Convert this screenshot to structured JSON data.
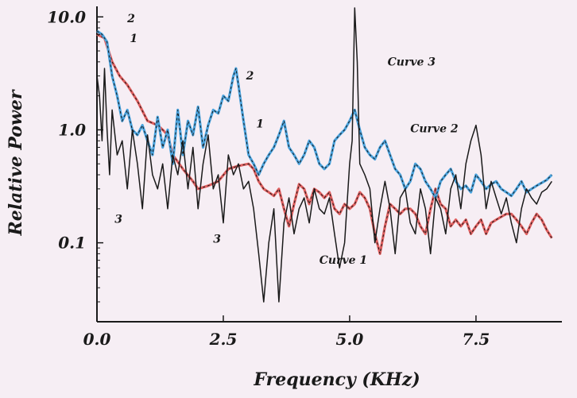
{
  "chart_data": {
    "type": "line",
    "title": "",
    "xlabel": "Frequency (KHz)",
    "ylabel": "Relative Power",
    "xlim": [
      0,
      9.2
    ],
    "ylim": [
      0.02,
      12
    ],
    "yscale": "log",
    "x_ticks": [
      {
        "value": 0.0,
        "label": "0.0"
      },
      {
        "value": 2.5,
        "label": "2.5"
      },
      {
        "value": 5.0,
        "label": "5.0"
      },
      {
        "value": 7.5,
        "label": "7.5"
      }
    ],
    "y_ticks": [
      {
        "value": 10,
        "label": "10.0"
      },
      {
        "value": 1,
        "label": "1.0"
      },
      {
        "value": 0.1,
        "label": "0.1"
      }
    ],
    "grid": false,
    "series": [
      {
        "name": "Curve 1",
        "color": "#e06060",
        "x": [
          0.0,
          0.15,
          0.2,
          0.3,
          0.45,
          0.6,
          0.8,
          1.0,
          1.2,
          1.3,
          1.4,
          1.5,
          1.7,
          1.9,
          2.0,
          2.2,
          2.4,
          2.6,
          2.8,
          3.0,
          3.1,
          3.2,
          3.3,
          3.4,
          3.5,
          3.6,
          3.7,
          3.8,
          3.9,
          4.0,
          4.1,
          4.2,
          4.3,
          4.4,
          4.5,
          4.6,
          4.7,
          4.8,
          4.9,
          5.0,
          5.1,
          5.2,
          5.3,
          5.4,
          5.5,
          5.6,
          5.7,
          5.8,
          5.9,
          6.0,
          6.1,
          6.2,
          6.3,
          6.4,
          6.5,
          6.6,
          6.7,
          6.8,
          6.9,
          7.0,
          7.1,
          7.2,
          7.3,
          7.4,
          7.5,
          7.6,
          7.7,
          7.8,
          7.9,
          8.0,
          8.1,
          8.2,
          8.3,
          8.4,
          8.5,
          8.6,
          8.7,
          8.8,
          8.9,
          9.0
        ],
        "values": [
          7.0,
          6.5,
          5.5,
          4.0,
          3.0,
          2.5,
          1.8,
          1.2,
          1.1,
          1.0,
          0.9,
          0.6,
          0.45,
          0.35,
          0.3,
          0.32,
          0.35,
          0.45,
          0.48,
          0.5,
          0.45,
          0.35,
          0.3,
          0.28,
          0.26,
          0.3,
          0.2,
          0.14,
          0.22,
          0.33,
          0.3,
          0.22,
          0.3,
          0.28,
          0.25,
          0.28,
          0.2,
          0.18,
          0.22,
          0.2,
          0.22,
          0.28,
          0.25,
          0.2,
          0.12,
          0.08,
          0.14,
          0.22,
          0.2,
          0.18,
          0.2,
          0.2,
          0.18,
          0.14,
          0.12,
          0.2,
          0.3,
          0.22,
          0.2,
          0.14,
          0.16,
          0.14,
          0.16,
          0.12,
          0.14,
          0.16,
          0.12,
          0.15,
          0.16,
          0.17,
          0.18,
          0.18,
          0.16,
          0.14,
          0.12,
          0.15,
          0.18,
          0.16,
          0.13,
          0.11
        ]
      },
      {
        "name": "Curve 2",
        "color": "#4aa3dd",
        "x": [
          0.0,
          0.1,
          0.2,
          0.3,
          0.4,
          0.5,
          0.6,
          0.7,
          0.8,
          0.9,
          1.0,
          1.1,
          1.2,
          1.3,
          1.4,
          1.5,
          1.6,
          1.7,
          1.8,
          1.9,
          2.0,
          2.1,
          2.2,
          2.3,
          2.4,
          2.5,
          2.6,
          2.7,
          2.75,
          2.8,
          2.9,
          3.0,
          3.1,
          3.2,
          3.3,
          3.4,
          3.5,
          3.6,
          3.7,
          3.8,
          3.9,
          4.0,
          4.1,
          4.2,
          4.3,
          4.4,
          4.5,
          4.6,
          4.7,
          4.8,
          4.9,
          5.0,
          5.1,
          5.2,
          5.3,
          5.4,
          5.5,
          5.6,
          5.7,
          5.8,
          5.9,
          6.0,
          6.1,
          6.2,
          6.3,
          6.4,
          6.5,
          6.6,
          6.7,
          6.8,
          6.9,
          7.0,
          7.1,
          7.2,
          7.3,
          7.4,
          7.5,
          7.6,
          7.7,
          7.8,
          7.9,
          8.0,
          8.1,
          8.2,
          8.3,
          8.4,
          8.5,
          8.6,
          8.7,
          8.8,
          8.9,
          9.0
        ],
        "values": [
          7.5,
          7.0,
          6.0,
          3.0,
          2.0,
          1.2,
          1.5,
          1.0,
          0.9,
          1.1,
          0.8,
          0.6,
          1.3,
          0.7,
          1.0,
          0.5,
          1.5,
          0.6,
          1.2,
          0.9,
          1.6,
          0.7,
          1.1,
          1.5,
          1.4,
          2.0,
          1.8,
          3.0,
          3.5,
          2.5,
          1.2,
          0.6,
          0.5,
          0.4,
          0.5,
          0.6,
          0.7,
          0.9,
          1.2,
          0.7,
          0.6,
          0.5,
          0.6,
          0.8,
          0.7,
          0.5,
          0.45,
          0.5,
          0.8,
          0.9,
          1.0,
          1.2,
          1.5,
          1.0,
          0.7,
          0.6,
          0.55,
          0.7,
          0.8,
          0.6,
          0.45,
          0.4,
          0.3,
          0.35,
          0.5,
          0.45,
          0.35,
          0.3,
          0.25,
          0.35,
          0.4,
          0.45,
          0.35,
          0.3,
          0.32,
          0.28,
          0.4,
          0.35,
          0.3,
          0.33,
          0.35,
          0.3,
          0.28,
          0.26,
          0.3,
          0.35,
          0.28,
          0.3,
          0.32,
          0.34,
          0.36,
          0.4
        ]
      },
      {
        "name": "Curve 3",
        "color": "#1a1a1a",
        "x": [
          0.0,
          0.05,
          0.1,
          0.15,
          0.2,
          0.25,
          0.3,
          0.4,
          0.5,
          0.6,
          0.7,
          0.8,
          0.9,
          1.0,
          1.1,
          1.2,
          1.3,
          1.4,
          1.5,
          1.6,
          1.7,
          1.8,
          1.9,
          2.0,
          2.1,
          2.2,
          2.3,
          2.4,
          2.5,
          2.6,
          2.7,
          2.8,
          2.9,
          3.0,
          3.1,
          3.2,
          3.3,
          3.4,
          3.5,
          3.6,
          3.7,
          3.8,
          3.9,
          4.0,
          4.1,
          4.2,
          4.3,
          4.4,
          4.5,
          4.6,
          4.7,
          4.8,
          4.9,
          5.0,
          5.05,
          5.1,
          5.15,
          5.2,
          5.3,
          5.4,
          5.5,
          5.6,
          5.7,
          5.8,
          5.9,
          6.0,
          6.1,
          6.2,
          6.3,
          6.4,
          6.5,
          6.6,
          6.7,
          6.8,
          6.9,
          7.0,
          7.1,
          7.2,
          7.3,
          7.4,
          7.5,
          7.6,
          7.7,
          7.8,
          7.9,
          8.0,
          8.1,
          8.2,
          8.3,
          8.4,
          8.5,
          8.6,
          8.7,
          8.8,
          8.9,
          9.0
        ],
        "values": [
          3.0,
          2.0,
          0.8,
          3.5,
          1.0,
          0.4,
          1.5,
          0.6,
          0.8,
          0.3,
          1.0,
          0.5,
          0.2,
          0.9,
          0.4,
          0.3,
          0.5,
          0.2,
          0.6,
          0.4,
          0.8,
          0.3,
          0.7,
          0.2,
          0.5,
          0.9,
          0.3,
          0.4,
          0.15,
          0.6,
          0.4,
          0.5,
          0.3,
          0.35,
          0.2,
          0.08,
          0.03,
          0.1,
          0.2,
          0.03,
          0.15,
          0.25,
          0.12,
          0.2,
          0.25,
          0.15,
          0.3,
          0.2,
          0.18,
          0.25,
          0.12,
          0.06,
          0.1,
          0.5,
          0.8,
          12.0,
          4.0,
          0.5,
          0.4,
          0.3,
          0.1,
          0.2,
          0.35,
          0.2,
          0.08,
          0.25,
          0.3,
          0.15,
          0.12,
          0.3,
          0.2,
          0.08,
          0.25,
          0.2,
          0.12,
          0.3,
          0.4,
          0.2,
          0.5,
          0.8,
          1.1,
          0.6,
          0.2,
          0.35,
          0.25,
          0.18,
          0.25,
          0.15,
          0.1,
          0.2,
          0.3,
          0.25,
          0.22,
          0.28,
          0.3,
          0.35
        ]
      }
    ],
    "annotations": [
      {
        "text": "2",
        "x": 0.6,
        "y": 9.0
      },
      {
        "text": "1",
        "x": 0.65,
        "y": 6.0
      },
      {
        "text": "3",
        "x": 0.35,
        "y": 0.15
      },
      {
        "text": "2",
        "x": 2.95,
        "y": 2.8
      },
      {
        "text": "1",
        "x": 3.15,
        "y": 1.05
      },
      {
        "text": "3",
        "x": 2.3,
        "y": 0.1
      },
      {
        "text": "Curve 3",
        "x": 5.75,
        "y": 3.7
      },
      {
        "text": "Curve 2",
        "x": 6.2,
        "y": 0.95
      },
      {
        "text": "Curve 1",
        "x": 4.4,
        "y": 0.065
      }
    ]
  }
}
